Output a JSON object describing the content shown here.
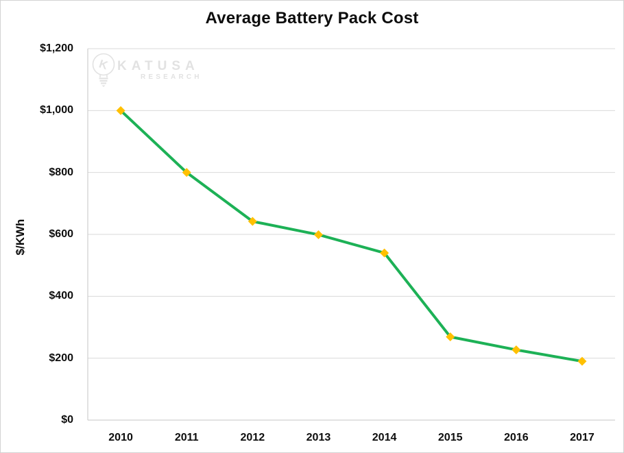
{
  "chart_data": {
    "type": "line",
    "title": "Average Battery Pack Cost",
    "ylabel": "$/KWh",
    "categories": [
      "2010",
      "2011",
      "2012",
      "2013",
      "2014",
      "2015",
      "2016",
      "2017"
    ],
    "values": [
      1000,
      800,
      642,
      599,
      540,
      269,
      227,
      190
    ],
    "ylim": [
      0,
      1200
    ],
    "ytick_step": 200,
    "ytick_labels": [
      "$0",
      "$200",
      "$400",
      "$600",
      "$800",
      "$1,000",
      "$1,200"
    ],
    "grid": true,
    "legend": "none",
    "line_color": "#1db156",
    "marker_color": "#ffc000",
    "marker_shape": "diamond",
    "gridline_color": "#d9d9d9",
    "axis_color": "#c6c6c6"
  },
  "watermark": {
    "brand": "KATUSA",
    "sub": "RESEARCH",
    "icon_letter": "K",
    "color": "#e2e2e2"
  }
}
